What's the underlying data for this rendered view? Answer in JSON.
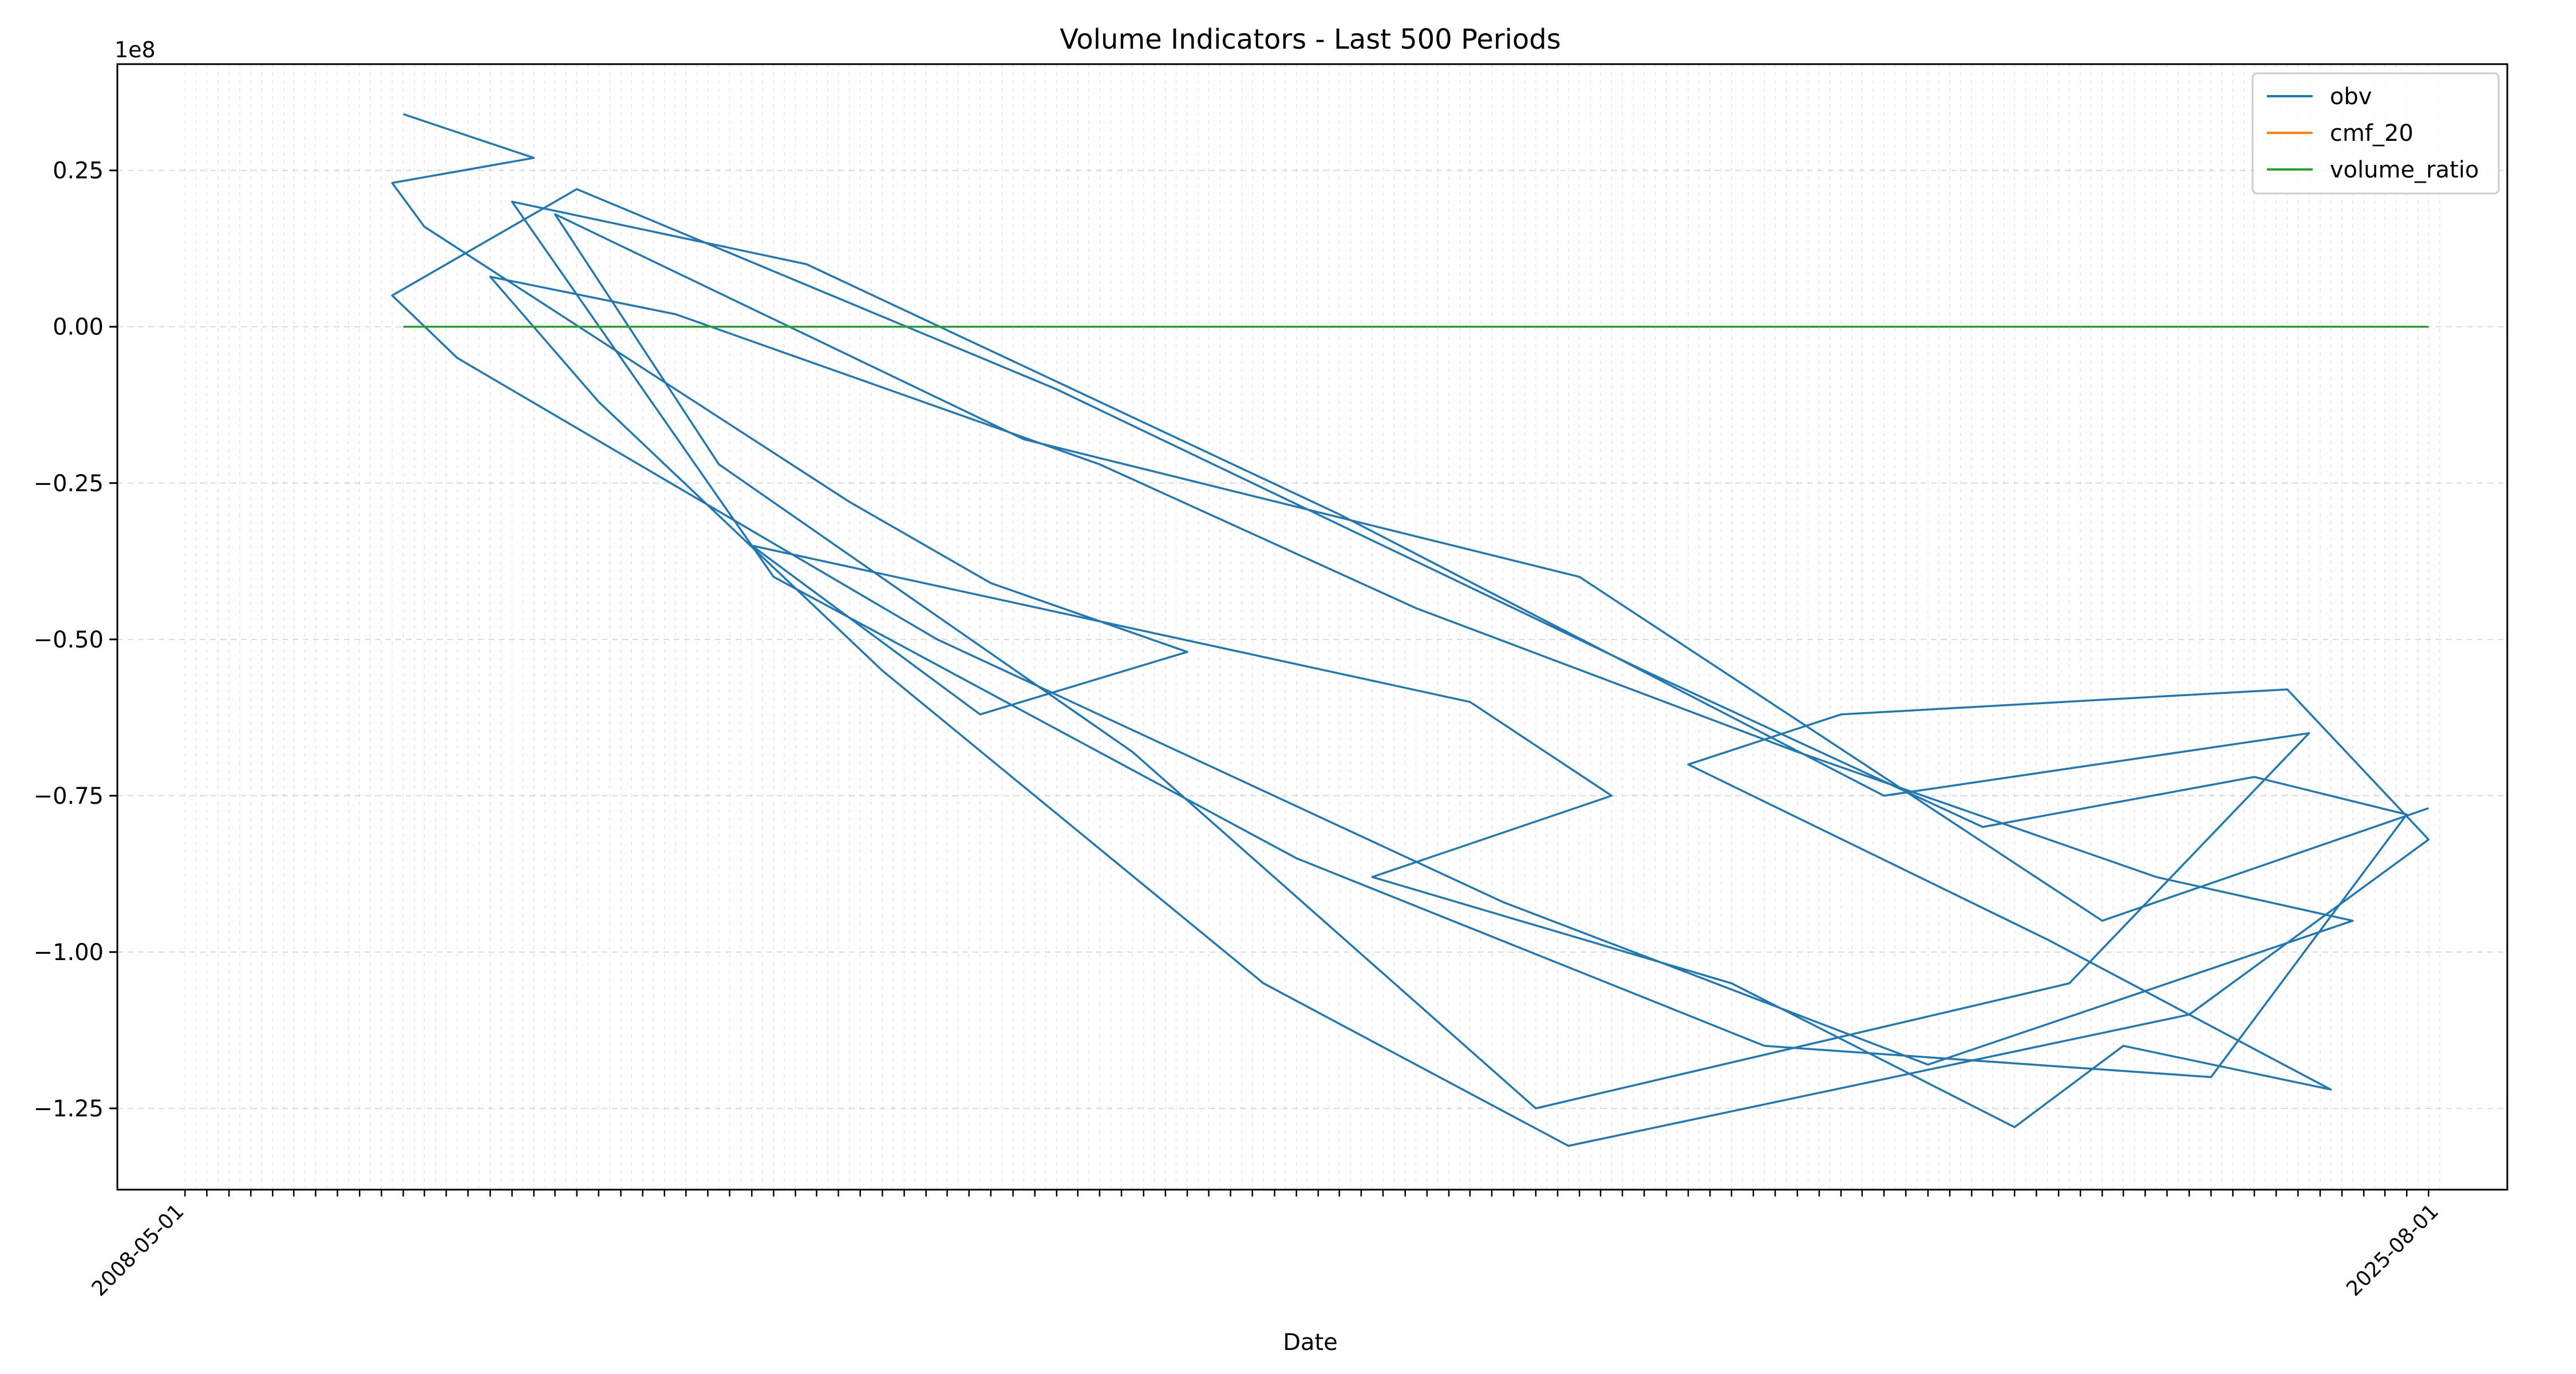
{
  "chart_data": {
    "type": "line",
    "title": "Volume Indicators - Last 500 Periods",
    "xlabel": "Date",
    "ylabel": "",
    "y_offset_label": "1e8",
    "x_range": [
      "2008-05-01",
      "2025-08-01"
    ],
    "ylim": [
      -1.38,
      0.42
    ],
    "y_ticks": [
      0.25,
      0.0,
      -0.25,
      -0.5,
      -0.75,
      -1.0,
      -1.25
    ],
    "y_tick_labels": [
      "0.25",
      "0.00",
      "−0.25",
      "−0.50",
      "−0.75",
      "−1.00",
      "−1.25"
    ],
    "x_tick_labels": [
      "2008-05-01",
      "2025-08-01"
    ],
    "grid": true,
    "legend_position": "top-right",
    "legend": [
      "obv",
      "cmf_20",
      "volume_ratio"
    ],
    "series": [
      {
        "name": "obv",
        "color": "#1f77b4",
        "x": [
          "2010-01-01",
          "2011-01-01",
          "2009-12-01",
          "2010-03-01",
          "2013-06-01",
          "2014-07-01",
          "2016-01-01",
          "2014-06-01",
          "2012-09-01",
          "2018-03-01",
          "2019-04-01",
          "2017-06-01",
          "2020-03-01",
          "2022-05-01",
          "2023-03-01",
          "2024-10-01",
          "2022-08-01",
          "2019-11-01",
          "2021-01-01",
          "2024-06-01",
          "2025-07-01",
          "2023-09-01",
          "2018-12-01",
          "2016-08-01",
          "2013-09-01",
          "2011-07-01",
          "2010-09-01",
          "2012-02-01",
          "2015-05-01",
          "2017-10-01",
          "2020-09-01",
          "2023-06-01",
          "2024-12-01",
          "2021-09-01",
          "2018-06-01",
          "2014-02-01",
          "2010-06-01",
          "2009-12-01",
          "2011-05-01",
          "2015-01-01",
          "2019-07-01",
          "2022-02-01",
          "2024-03-01",
          "2025-05-01",
          "2023-11-01",
          "2020-06-01",
          "2016-11-01",
          "2012-11-01",
          "2010-11-01",
          "2013-02-01",
          "2017-03-01",
          "2021-05-01",
          "2024-08-01",
          "2022-10-01",
          "2018-09-01",
          "2015-08-01",
          "2012-06-01",
          "2011-03-01",
          "2014-10-01",
          "2019-01-01",
          "2023-01-01",
          "2025-07-01"
        ],
        "values": [
          0.34,
          0.27,
          0.23,
          0.16,
          -0.28,
          -0.41,
          -0.52,
          -0.62,
          -0.35,
          -0.6,
          -0.75,
          -0.88,
          -1.05,
          -1.28,
          -1.15,
          -1.22,
          -0.98,
          -0.7,
          -0.62,
          -0.58,
          -0.82,
          -1.1,
          -1.31,
          -1.05,
          -0.55,
          -0.12,
          0.08,
          0.02,
          -0.22,
          -0.45,
          -0.68,
          -0.88,
          -0.95,
          -1.18,
          -0.92,
          -0.5,
          -0.05,
          0.05,
          0.22,
          -0.1,
          -0.55,
          -0.8,
          -0.72,
          -0.78,
          -1.2,
          -1.15,
          -0.85,
          -0.4,
          0.2,
          0.1,
          -0.3,
          -0.75,
          -0.65,
          -1.05,
          -1.25,
          -0.68,
          -0.22,
          0.18,
          -0.18,
          -0.4,
          -0.95,
          -0.77
        ]
      },
      {
        "name": "cmf_20",
        "color": "#ff7f0e",
        "x": [
          "2010-01-01",
          "2025-07-01"
        ],
        "values": [
          0.0,
          0.0
        ]
      },
      {
        "name": "volume_ratio",
        "color": "#2ca02c",
        "x": [
          "2010-01-01",
          "2025-07-01"
        ],
        "values": [
          0.0,
          0.0
        ]
      }
    ]
  }
}
